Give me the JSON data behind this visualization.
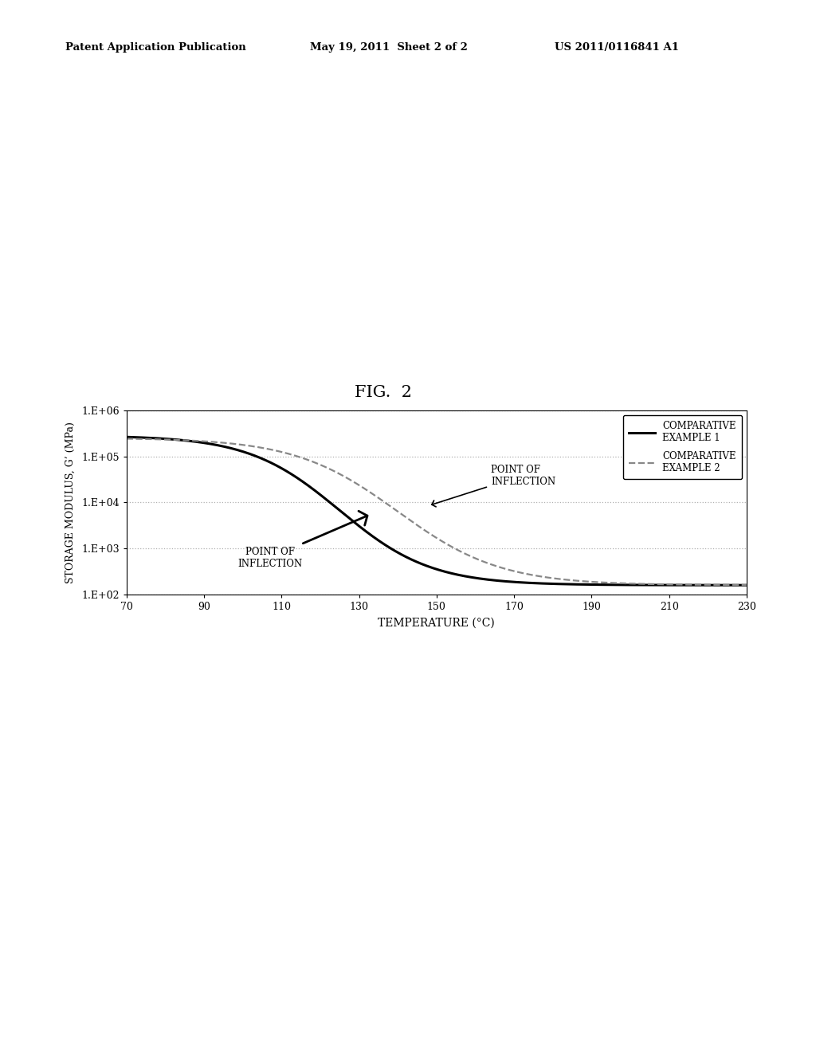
{
  "title": "FIG.  2",
  "xlabel": "TEMPERATURE (°C)",
  "ylabel": "STORAGE MODULUS, G’ (MPa)",
  "header_left": "Patent Application Publication",
  "header_mid": "May 19, 2011  Sheet 2 of 2",
  "header_right": "US 2011/0116841 A1",
  "legend": [
    "COMPARATIVE\nEXAMPLE 1",
    "COMPARATIVE\nEXAMPLE 2"
  ],
  "xticks": [
    70,
    90,
    110,
    130,
    150,
    170,
    190,
    210,
    230
  ],
  "ytick_labels": [
    "1.E+02",
    "1.E+03",
    "1.E+04",
    "1.E+05",
    "1.E+06"
  ],
  "ytick_values": [
    100,
    1000,
    10000,
    100000,
    1000000
  ],
  "xmin": 70,
  "xmax": 230,
  "ymin": 100,
  "ymax": 1000000,
  "background_color": "#ffffff",
  "line1_color": "#000000",
  "line2_color": "#888888",
  "grid_color": "#b0b0b0",
  "annotation1_text": "POINT OF\nINFLECTION",
  "annotation2_text": "POINT OF\nINFLECTION"
}
